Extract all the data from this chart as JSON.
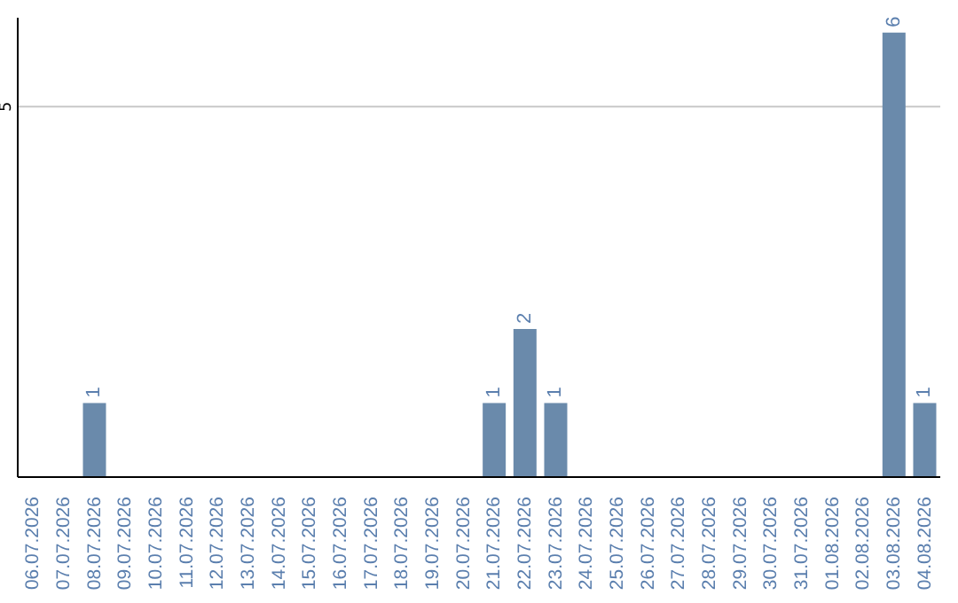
{
  "chart_data": {
    "type": "bar",
    "categories": [
      "06.07.2026",
      "07.07.2026",
      "08.07.2026",
      "09.07.2026",
      "10.07.2026",
      "11.07.2026",
      "12.07.2026",
      "13.07.2026",
      "14.07.2026",
      "15.07.2026",
      "16.07.2026",
      "17.07.2026",
      "18.07.2026",
      "19.07.2026",
      "20.07.2026",
      "21.07.2026",
      "22.07.2026",
      "23.07.2026",
      "24.07.2026",
      "25.07.2026",
      "26.07.2026",
      "27.07.2026",
      "28.07.2026",
      "29.07.2026",
      "30.07.2026",
      "31.07.2026",
      "01.08.2026",
      "02.08.2026",
      "03.08.2026",
      "04.08.2026"
    ],
    "values": [
      null,
      null,
      1,
      null,
      null,
      null,
      null,
      null,
      null,
      null,
      null,
      null,
      null,
      null,
      null,
      1,
      2,
      1,
      null,
      null,
      null,
      null,
      null,
      null,
      null,
      null,
      null,
      null,
      6,
      1
    ],
    "color": "#6a8aab",
    "ylim": [
      0,
      6.2
    ],
    "yticks": [
      5
    ],
    "grid": "y",
    "data_labels": true
  }
}
